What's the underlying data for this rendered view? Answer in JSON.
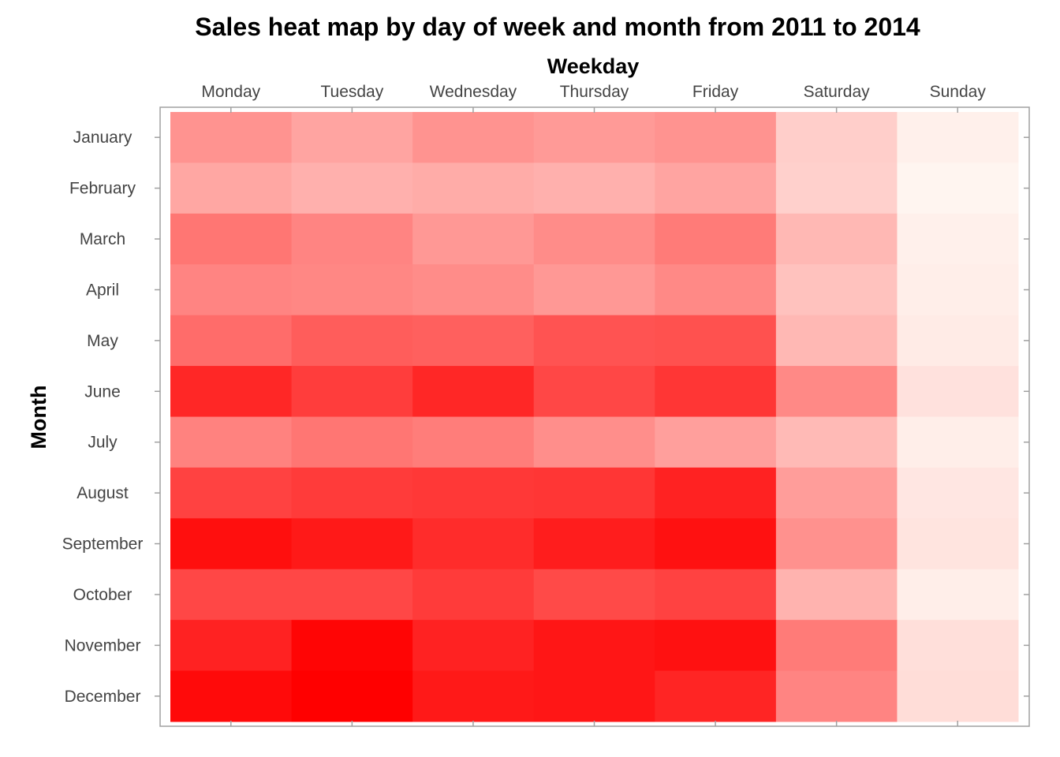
{
  "chart_data": {
    "type": "heatmap",
    "title": "Sales heat map by day of week and month from 2011 to 2014",
    "xlabel": "Weekday",
    "ylabel": "Month",
    "x_axis_position": "top",
    "x_categories": [
      "Monday",
      "Tuesday",
      "Wednesday",
      "Thursday",
      "Friday",
      "Saturday",
      "Sunday"
    ],
    "y_categories": [
      "January",
      "February",
      "March",
      "April",
      "May",
      "June",
      "July",
      "August",
      "September",
      "October",
      "November",
      "December"
    ],
    "values": [
      [
        0.4,
        0.33,
        0.4,
        0.37,
        0.4,
        0.16,
        0.02
      ],
      [
        0.32,
        0.28,
        0.3,
        0.28,
        0.33,
        0.15,
        0.0
      ],
      [
        0.52,
        0.46,
        0.38,
        0.43,
        0.5,
        0.25,
        0.02
      ],
      [
        0.46,
        0.45,
        0.43,
        0.38,
        0.44,
        0.21,
        0.03
      ],
      [
        0.56,
        0.62,
        0.61,
        0.66,
        0.67,
        0.25,
        0.04
      ],
      [
        0.84,
        0.75,
        0.84,
        0.71,
        0.78,
        0.44,
        0.08
      ],
      [
        0.47,
        0.52,
        0.49,
        0.42,
        0.35,
        0.24,
        0.03
      ],
      [
        0.73,
        0.76,
        0.77,
        0.78,
        0.86,
        0.36,
        0.06
      ],
      [
        0.94,
        0.9,
        0.82,
        0.88,
        0.93,
        0.41,
        0.07
      ],
      [
        0.71,
        0.71,
        0.76,
        0.7,
        0.73,
        0.27,
        0.03
      ],
      [
        0.86,
        0.98,
        0.86,
        0.91,
        0.93,
        0.5,
        0.09
      ],
      [
        0.96,
        1.0,
        0.9,
        0.91,
        0.85,
        0.46,
        0.1
      ]
    ],
    "colorscale": [
      "#fff5f0",
      "#ff0000"
    ],
    "grid": false,
    "legend": "none"
  }
}
